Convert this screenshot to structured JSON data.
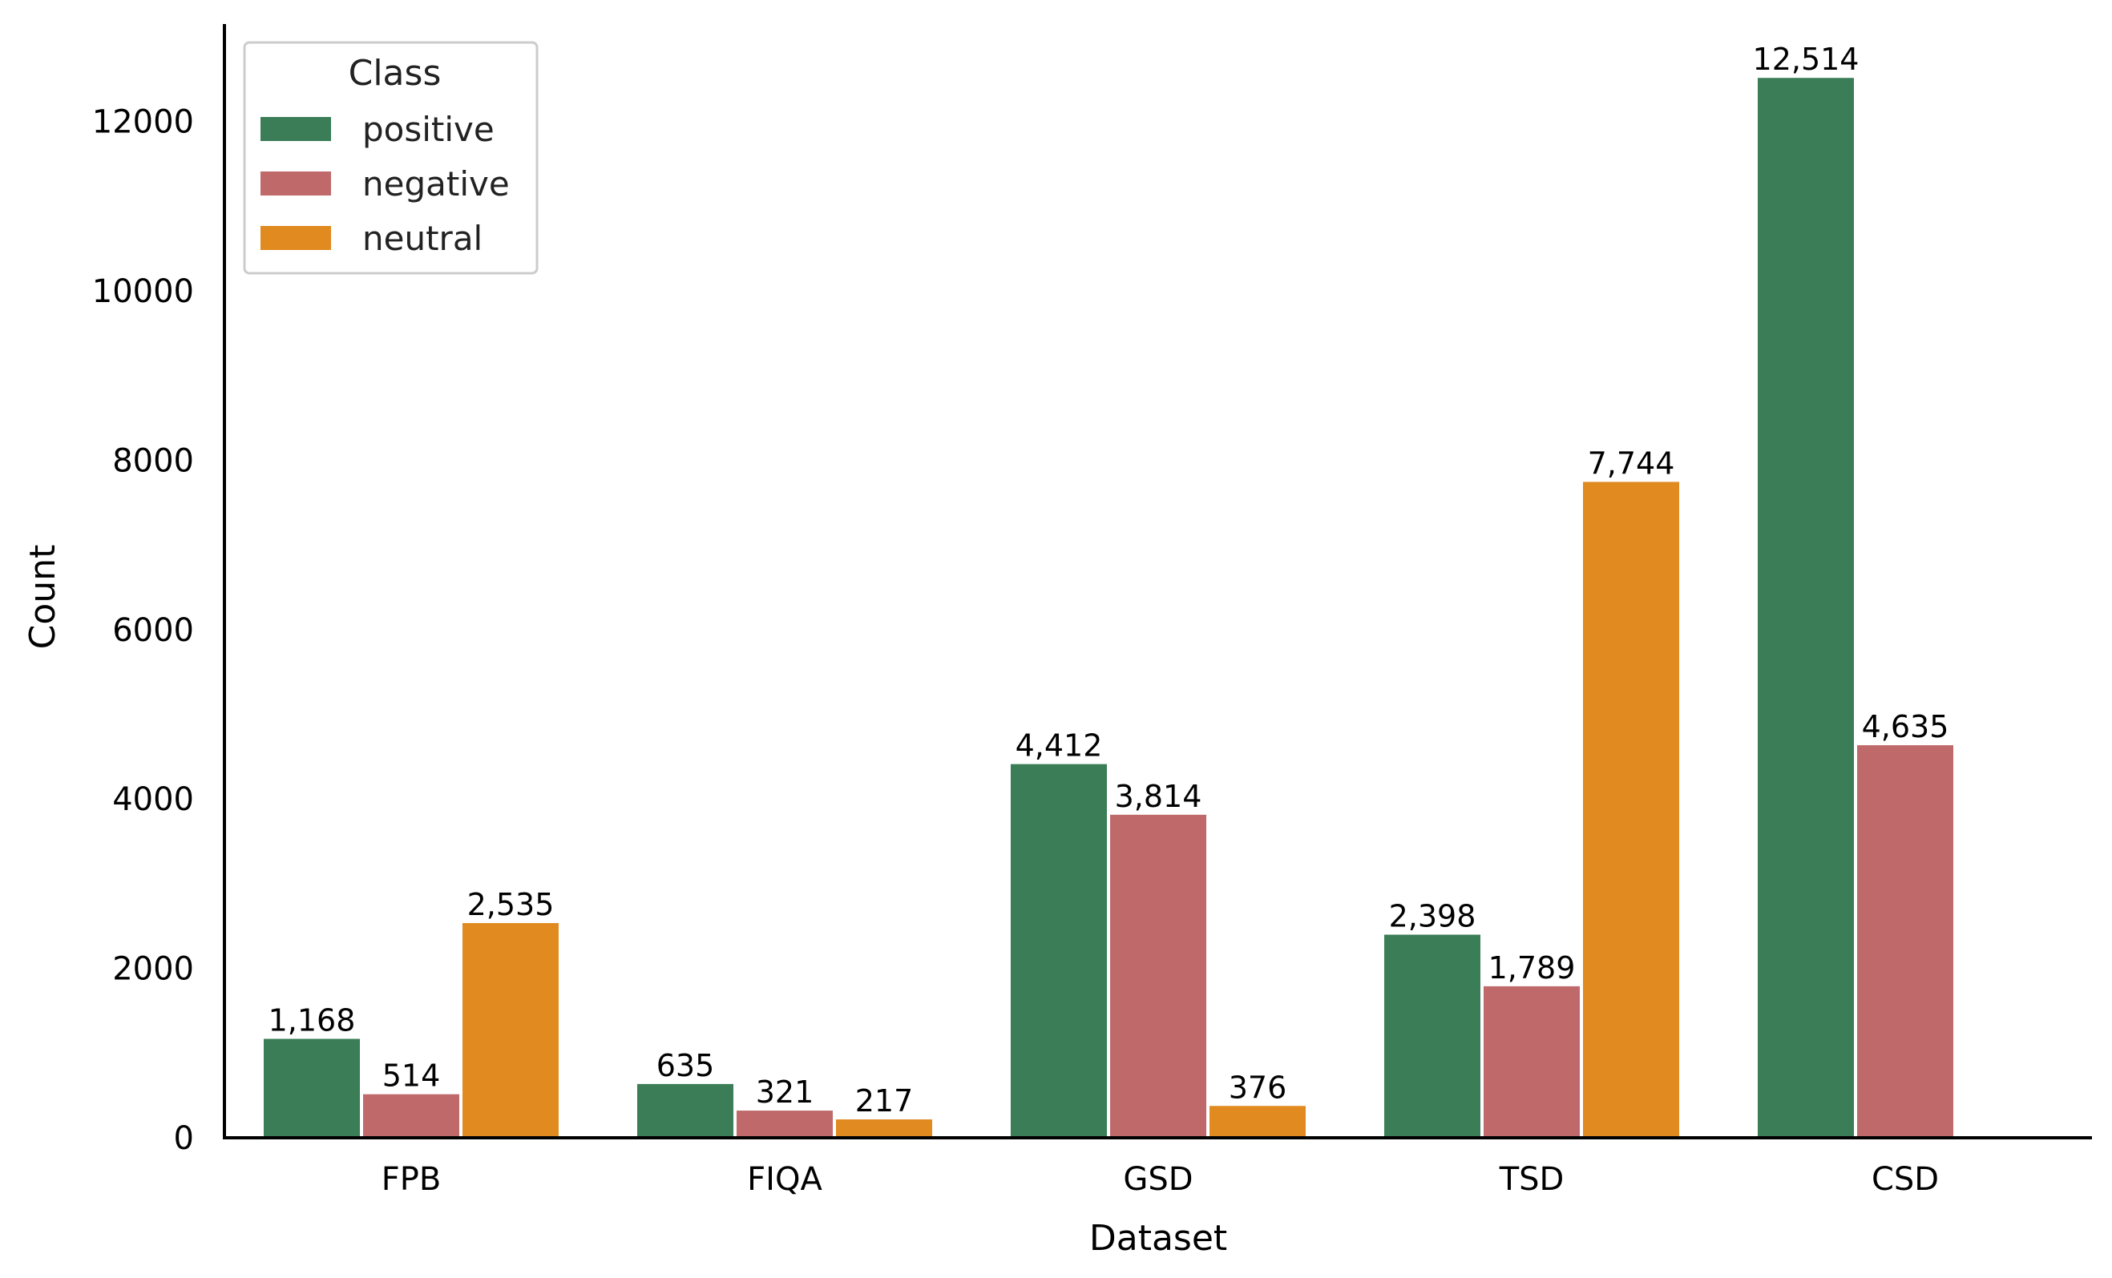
{
  "chart_data": {
    "type": "bar",
    "title": "",
    "xlabel": "Dataset",
    "ylabel": "Count",
    "categories": [
      "FPB",
      "FIQA",
      "GSD",
      "TSD",
      "CSD"
    ],
    "ylim": [
      0,
      13150
    ],
    "yticks": [
      0,
      2000,
      4000,
      6000,
      8000,
      10000,
      12000
    ],
    "ytick_labels": [
      "0",
      "2000",
      "4000",
      "6000",
      "8000",
      "10000",
      "12000"
    ],
    "grid": false,
    "legend": {
      "title": "Class",
      "position": "top-left"
    },
    "series": [
      {
        "name": "positive",
        "color": "#3a7d57",
        "values": [
          1168,
          635,
          4412,
          2398,
          12514
        ],
        "labels": [
          "1,168",
          "635",
          "4,412",
          "2,398",
          "12,514"
        ]
      },
      {
        "name": "negative",
        "color": "#bf696a",
        "values": [
          514,
          321,
          3814,
          1789,
          4635
        ],
        "labels": [
          "514",
          "321",
          "3,814",
          "1,789",
          "4,635"
        ]
      },
      {
        "name": "neutral",
        "color": "#e08a20",
        "values": [
          2535,
          217,
          376,
          7744,
          null
        ],
        "labels": [
          "2,535",
          "217",
          "376",
          "7,744",
          null
        ]
      }
    ]
  }
}
